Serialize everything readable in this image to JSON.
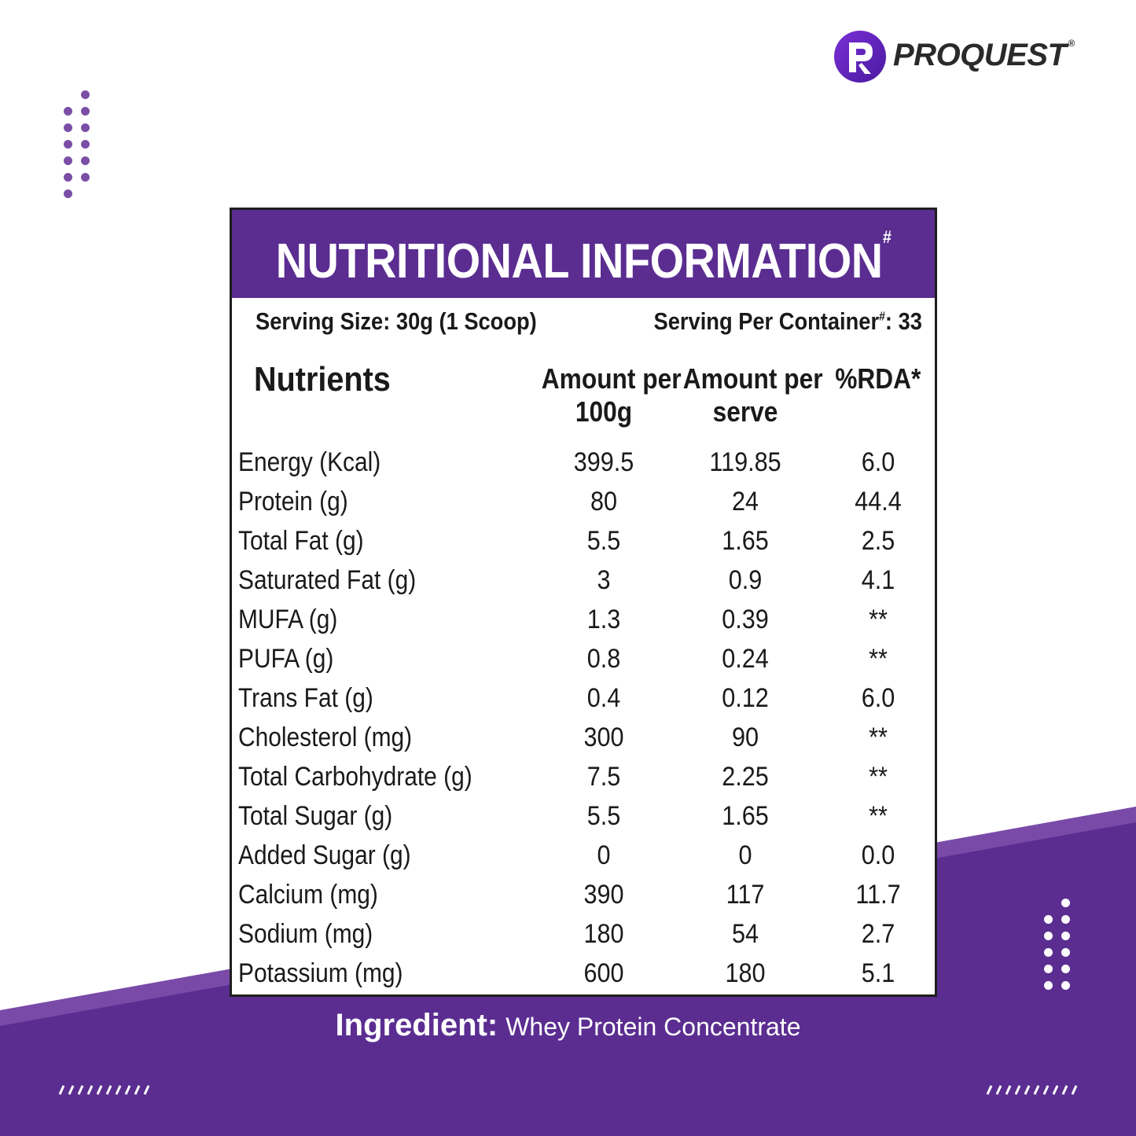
{
  "brand": {
    "name": "PROQUEST",
    "registered_mark": "®",
    "logo_letter": "P"
  },
  "colors": {
    "purple": "#5b2d91",
    "purple_light": "#7a4aa8",
    "dot_purple": "#7b4fa6"
  },
  "panel": {
    "title": "NUTRITIONAL INFORMATION",
    "title_mark": "#",
    "serving_size": "Serving Size: 30g (1 Scoop)",
    "servings_per_container_label": "Serving Per Container",
    "servings_per_container_mark": "#",
    "servings_per_container_value": ": 33",
    "headers": {
      "nutrients": "Nutrients",
      "per100_line1": "Amount per",
      "per100_line2": "100g",
      "perserve_line1": "Amount per",
      "perserve_line2": "serve",
      "rda": "%RDA*"
    },
    "rows": [
      {
        "name": "Energy (Kcal)",
        "per100": "399.5",
        "perserve": "119.85",
        "rda": "6.0"
      },
      {
        "name": "Protein (g)",
        "per100": "80",
        "perserve": "24",
        "rda": "44.4"
      },
      {
        "name": "Total Fat (g)",
        "per100": "5.5",
        "perserve": "1.65",
        "rda": "2.5"
      },
      {
        "name": "Saturated Fat (g)",
        "per100": "3",
        "perserve": "0.9",
        "rda": "4.1"
      },
      {
        "name": "MUFA (g)",
        "per100": "1.3",
        "perserve": "0.39",
        "rda": "**"
      },
      {
        "name": "PUFA (g)",
        "per100": "0.8",
        "perserve": "0.24",
        "rda": "**"
      },
      {
        "name": "Trans Fat (g)",
        "per100": "0.4",
        "perserve": "0.12",
        "rda": "6.0"
      },
      {
        "name": "Cholesterol (mg)",
        "per100": "300",
        "perserve": "90",
        "rda": "**"
      },
      {
        "name": "Total Carbohydrate (g)",
        "per100": "7.5",
        "perserve": "2.25",
        "rda": "**"
      },
      {
        "name": "Total Sugar (g)",
        "per100": "5.5",
        "perserve": "1.65",
        "rda": "**"
      },
      {
        "name": "Added Sugar (g)",
        "per100": "0",
        "perserve": "0",
        "rda": "0.0"
      },
      {
        "name": "Calcium (mg)",
        "per100": "390",
        "perserve": "117",
        "rda": "11.7"
      },
      {
        "name": "Sodium (mg)",
        "per100": "180",
        "perserve": "54",
        "rda": "2.7"
      },
      {
        "name": "Potassium (mg)",
        "per100": "600",
        "perserve": "180",
        "rda": "5.1"
      }
    ]
  },
  "ingredient": {
    "label": "Ingredient:",
    "value": "Whey Protein Concentrate"
  }
}
